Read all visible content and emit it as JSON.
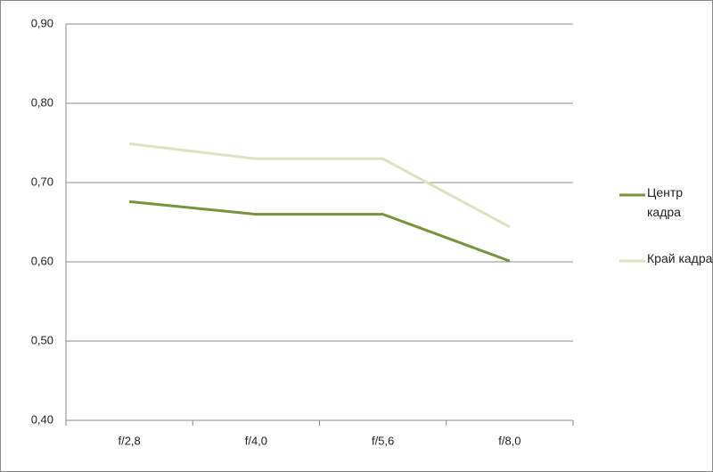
{
  "chart_data": {
    "type": "line",
    "categories": [
      "f/2,8",
      "f/4,0",
      "f/5,6",
      "f/8,0"
    ],
    "series": [
      {
        "name": "Центр кадра",
        "color": "#77933c",
        "values": [
          0.676,
          0.66,
          0.66,
          0.601
        ]
      },
      {
        "name": "Край кадра",
        "color": "#d7e4bd",
        "values": [
          0.749,
          0.73,
          0.73,
          0.644
        ]
      }
    ],
    "ylim": [
      0.4,
      0.9
    ],
    "yticks": [
      {
        "value": 0.4,
        "label": "0,40"
      },
      {
        "value": 0.5,
        "label": "0,50"
      },
      {
        "value": 0.6,
        "label": "0,60"
      },
      {
        "value": 0.7,
        "label": "0,70"
      },
      {
        "value": 0.8,
        "label": "0,80"
      },
      {
        "value": 0.9,
        "label": "0,90"
      }
    ],
    "grid": true,
    "legend": "right"
  }
}
